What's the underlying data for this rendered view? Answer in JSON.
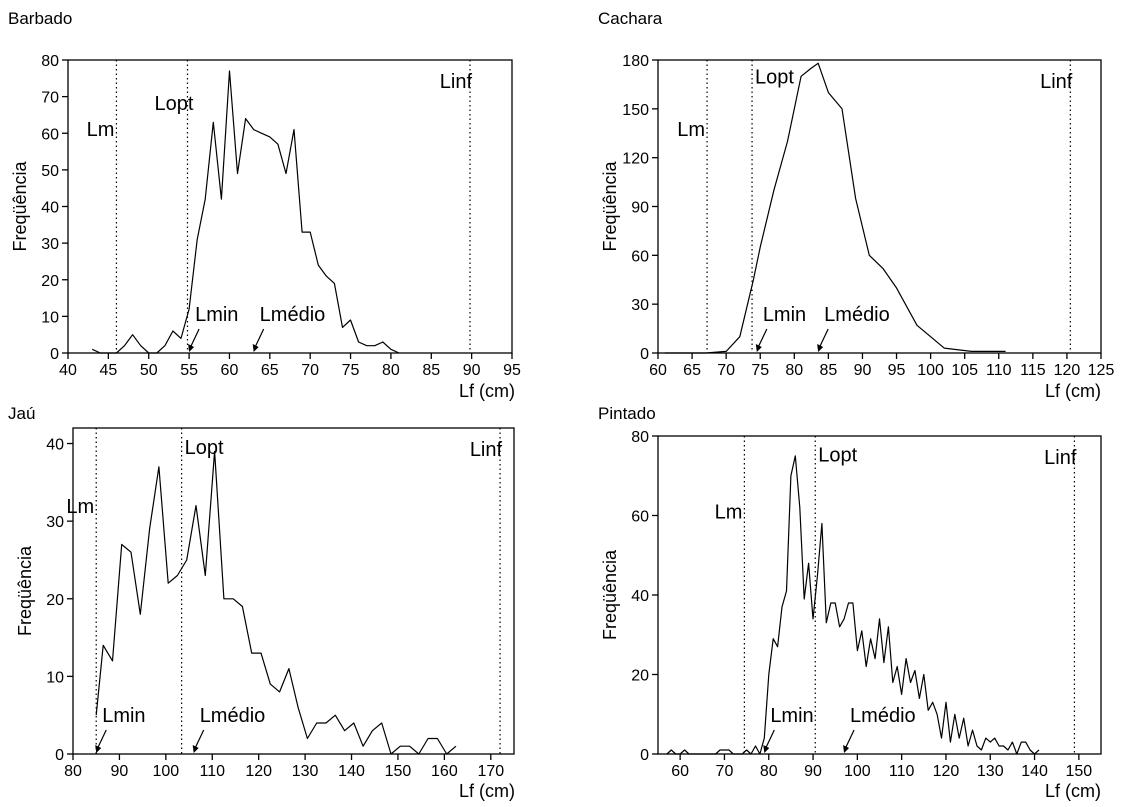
{
  "chart_data": [
    {
      "type": "line",
      "title": "Barbado",
      "xlabel": "Lf (cm)",
      "ylabel": "Freqüência",
      "xlim": [
        40,
        95
      ],
      "ylim": [
        0,
        80
      ],
      "xticks": [
        40,
        45,
        50,
        55,
        60,
        65,
        70,
        75,
        80,
        85,
        90,
        95
      ],
      "yticks": [
        0,
        10,
        20,
        30,
        40,
        50,
        60,
        70,
        80
      ],
      "series": [
        {
          "x": [
            43,
            44,
            46,
            47,
            48,
            49,
            50,
            51,
            52,
            53,
            54,
            55,
            56,
            57,
            58,
            59,
            60,
            61,
            62,
            63,
            64,
            65,
            66,
            67,
            68,
            69,
            70,
            71,
            72,
            73,
            74,
            75,
            76,
            77,
            78,
            79,
            80,
            81
          ],
          "y": [
            1,
            0,
            0,
            2,
            5,
            2,
            0,
            0,
            2,
            6,
            4,
            12,
            31,
            42,
            63,
            42,
            77,
            49,
            64,
            61,
            60,
            59,
            57,
            49,
            61,
            33,
            33,
            24,
            21,
            19,
            7,
            9,
            3,
            2,
            2,
            3,
            1,
            0
          ]
        }
      ],
      "reference_lines": [
        {
          "label": "Lm",
          "x": 46
        },
        {
          "label": "Lopt",
          "x": 54.8
        },
        {
          "label": "Linf",
          "x": 89.8
        }
      ],
      "arrow_annotations": [
        {
          "label": "Lmin",
          "x": 55
        },
        {
          "label": "Lmédio",
          "x": 63
        }
      ]
    },
    {
      "type": "line",
      "title": "Cachara",
      "xlabel": "Lf (cm)",
      "ylabel": "Freqüência",
      "xlim": [
        60,
        125
      ],
      "ylim": [
        0,
        180
      ],
      "xticks": [
        60,
        65,
        70,
        75,
        80,
        85,
        90,
        95,
        100,
        105,
        110,
        115,
        120,
        125
      ],
      "yticks": [
        0,
        30,
        60,
        90,
        120,
        150,
        180
      ],
      "series": [
        {
          "x": [
            61,
            67,
            70,
            72,
            74,
            75,
            77,
            79,
            81,
            82.5,
            83.5,
            85,
            87,
            89,
            91,
            93,
            95,
            98,
            102,
            106,
            111
          ],
          "y": [
            0,
            0,
            1,
            10,
            45,
            65,
            100,
            130,
            170,
            175,
            178,
            160,
            150,
            95,
            60,
            52,
            40,
            17,
            3,
            1,
            1
          ]
        }
      ],
      "reference_lines": [
        {
          "label": "Lm",
          "x": 67.2
        },
        {
          "label": "Lopt",
          "x": 73.8
        },
        {
          "label": "Linf",
          "x": 120.5
        }
      ],
      "arrow_annotations": [
        {
          "label": "Lmin",
          "x": 74.5
        },
        {
          "label": "Lmédio",
          "x": 83.5
        }
      ]
    },
    {
      "type": "line",
      "title": "Jaú",
      "xlabel": "Lf (cm)",
      "ylabel": "Freqüência",
      "xlim": [
        80,
        175
      ],
      "ylim": [
        0,
        42
      ],
      "xticks": [
        80,
        90,
        100,
        110,
        120,
        130,
        140,
        150,
        160,
        170
      ],
      "yticks": [
        0,
        10,
        20,
        30,
        40
      ],
      "series": [
        {
          "x": [
            85,
            86.5,
            88.5,
            90.5,
            92.5,
            94.5,
            96.5,
            98.5,
            100.5,
            102.5,
            104.5,
            106.5,
            108.5,
            110.5,
            112.5,
            114.5,
            116.5,
            118.5,
            120.5,
            122.5,
            124.5,
            126.5,
            128.5,
            130.5,
            132.5,
            134.5,
            136.5,
            138.5,
            140.5,
            142.5,
            144.5,
            146.5,
            148.5,
            150.5,
            152.5,
            154.5,
            156.5,
            158.5,
            160.5,
            162.5
          ],
          "y": [
            5,
            14,
            12,
            27,
            26,
            18,
            29,
            37,
            22,
            23,
            25,
            32,
            23,
            39,
            20,
            20,
            19,
            13,
            13,
            9,
            8,
            11,
            6,
            2,
            4,
            4,
            5,
            3,
            4,
            1,
            3,
            4,
            0,
            1,
            1,
            0,
            2,
            2,
            0,
            1
          ]
        }
      ],
      "reference_lines": [
        {
          "label": "Lm",
          "x": 85
        },
        {
          "label": "Lopt",
          "x": 103.4
        },
        {
          "label": "Linf",
          "x": 172
        }
      ],
      "arrow_annotations": [
        {
          "label": "Lmin",
          "x": 85
        },
        {
          "label": "Lmédio",
          "x": 106
        }
      ]
    },
    {
      "type": "line",
      "title": "Pintado",
      "xlabel": "Lf (cm)",
      "ylabel": "Freqüência",
      "xlim": [
        55,
        155
      ],
      "ylim": [
        0,
        80
      ],
      "xticks": [
        60,
        70,
        80,
        90,
        100,
        110,
        120,
        130,
        140,
        150
      ],
      "yticks": [
        0,
        20,
        40,
        60,
        80
      ],
      "series": [
        {
          "x": [
            57,
            58,
            59,
            60,
            61,
            62,
            68,
            69,
            70,
            71,
            72,
            73,
            74,
            75,
            76,
            77,
            78,
            79,
            80,
            81,
            82,
            83,
            84,
            85,
            86,
            87,
            88,
            89,
            90,
            91,
            92,
            93,
            94,
            95,
            96,
            97,
            98,
            99,
            100,
            101,
            102,
            103,
            104,
            105,
            106,
            107,
            108,
            109,
            110,
            111,
            112,
            113,
            114,
            115,
            116,
            117,
            118,
            119,
            120,
            121,
            122,
            123,
            124,
            125,
            126,
            127,
            128,
            129,
            130,
            131,
            132,
            133,
            134,
            135,
            136,
            137,
            138,
            139,
            140,
            141
          ],
          "y": [
            0,
            1,
            0,
            0,
            1,
            0,
            0,
            1,
            1,
            1,
            0,
            0,
            0,
            1,
            0,
            2,
            0,
            4,
            20,
            29,
            27,
            37,
            41,
            70,
            75,
            62,
            39,
            48,
            34,
            45,
            58,
            33,
            38,
            38,
            32,
            34,
            38,
            38,
            26,
            31,
            22,
            29,
            24,
            34,
            23,
            32,
            18,
            22,
            15,
            24,
            18,
            21,
            14,
            20,
            11,
            13,
            10,
            4,
            13,
            3,
            10,
            4,
            9,
            2,
            6,
            2,
            1,
            4,
            3,
            4,
            2,
            2,
            1,
            3,
            0,
            3,
            3,
            1,
            0,
            1
          ]
        }
      ],
      "reference_lines": [
        {
          "label": "Lm",
          "x": 74.5
        },
        {
          "label": "Lopt",
          "x": 90.5
        },
        {
          "label": "Linf",
          "x": 149
        }
      ],
      "arrow_annotations": [
        {
          "label": "Lmin",
          "x": 79
        },
        {
          "label": "Lmédio",
          "x": 97
        }
      ]
    }
  ]
}
